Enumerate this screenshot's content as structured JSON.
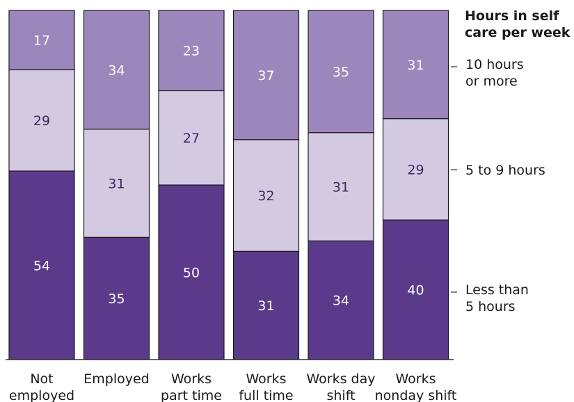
{
  "chart_data": {
    "type": "bar",
    "stacked": true,
    "normalized_percent": true,
    "categories": [
      [
        "Not",
        "employed"
      ],
      [
        "Employed"
      ],
      [
        "Works",
        "part time"
      ],
      [
        "Works",
        "full time"
      ],
      [
        "Works day",
        "shift"
      ],
      [
        "Works",
        "nonday shift"
      ]
    ],
    "series": [
      {
        "name": "Less than 5 hours",
        "legend_lines": [
          "Less than",
          "5 hours"
        ],
        "color": "#5b3a8c",
        "label_color": "#ffffff",
        "values": [
          54,
          35,
          50,
          31,
          34,
          40
        ]
      },
      {
        "name": "5 to 9 hours",
        "legend_lines": [
          "5 to 9 hours"
        ],
        "color": "#d3cae2",
        "label_color": "#3a2a5a",
        "values": [
          29,
          31,
          27,
          32,
          31,
          29
        ]
      },
      {
        "name": "10 hours or more",
        "legend_lines": [
          "10 hours",
          "or more"
        ],
        "color": "#9b87bb",
        "label_color": "#ffffff",
        "values": [
          17,
          34,
          23,
          37,
          35,
          31
        ]
      }
    ],
    "legend_title": [
      "Hours in self",
      "care per week"
    ],
    "legend_position": "right",
    "ylim": [
      0,
      100
    ],
    "grid": false
  }
}
